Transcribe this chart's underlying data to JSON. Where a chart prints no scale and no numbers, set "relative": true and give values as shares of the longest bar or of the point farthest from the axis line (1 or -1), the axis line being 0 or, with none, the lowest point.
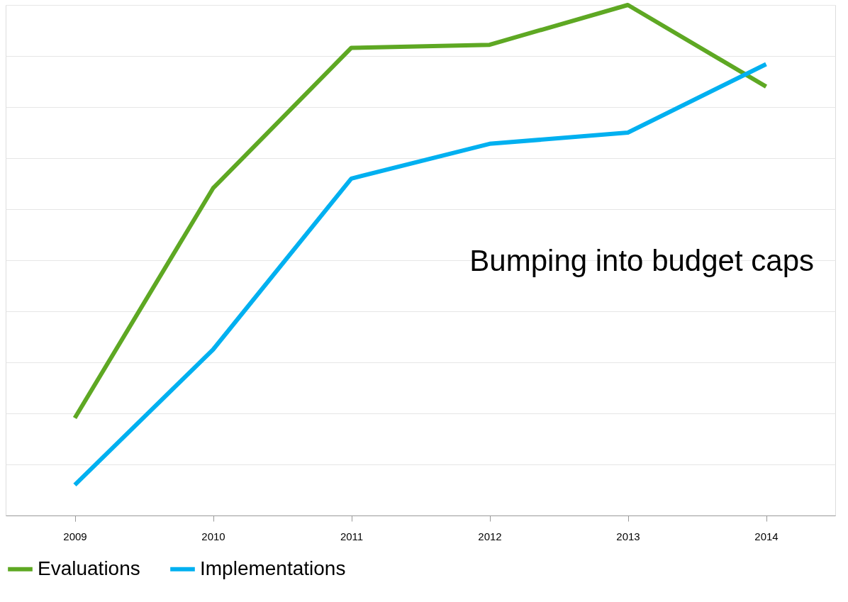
{
  "chart_data": {
    "type": "line",
    "relative": true,
    "categories": [
      "2009",
      "2010",
      "2011",
      "2012",
      "2013",
      "2014"
    ],
    "series": [
      {
        "name": "Evaluations",
        "color": "#5ea823",
        "values": [
          0.191,
          0.641,
          0.916,
          0.922,
          1,
          0.84
        ]
      },
      {
        "name": "Implementations",
        "color": "#00b0f0",
        "values": [
          0.06,
          0.325,
          0.66,
          0.728,
          0.75,
          0.884
        ]
      }
    ],
    "annotations": [
      "Bumping into budget caps"
    ],
    "grid": "y",
    "legend": "bottom",
    "marker": "none",
    "line_style": "solid"
  }
}
